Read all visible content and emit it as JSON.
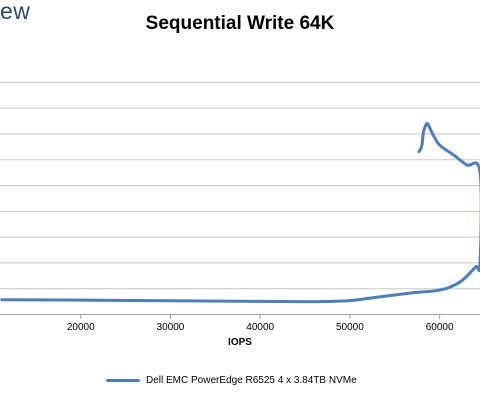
{
  "logo_text": "ew",
  "colors": {
    "series": "#4f7db8",
    "grid": "#c8c8c8",
    "axis": "#a0a0a0"
  },
  "chart_data": {
    "type": "line",
    "title": "Sequential Write 64K",
    "xlabel": "IOPS",
    "ylabel": "",
    "xlim": [
      11000,
      64500
    ],
    "ylim": [
      0,
      10
    ],
    "grid": true,
    "legend_position": "bottom",
    "x_ticks": [
      20000,
      30000,
      40000,
      50000,
      60000
    ],
    "series": [
      {
        "name": "Dell EMC PowerEdge R6525 4 x 3.84TB NVMe",
        "x": [
          11200,
          20000,
          30000,
          40000,
          46000,
          50000,
          53000,
          57000,
          59500,
          61000,
          62500,
          64000,
          64500,
          64500,
          63000,
          61500,
          60000,
          59200,
          58700,
          58500,
          58200,
          58000,
          57700
        ],
        "y": [
          0.55,
          0.54,
          0.51,
          0.49,
          0.48,
          0.52,
          0.65,
          0.82,
          0.9,
          1.02,
          1.3,
          1.82,
          2.0,
          5.5,
          5.78,
          6.18,
          6.55,
          7.0,
          7.35,
          7.35,
          7.05,
          6.5,
          6.3
        ]
      }
    ]
  }
}
